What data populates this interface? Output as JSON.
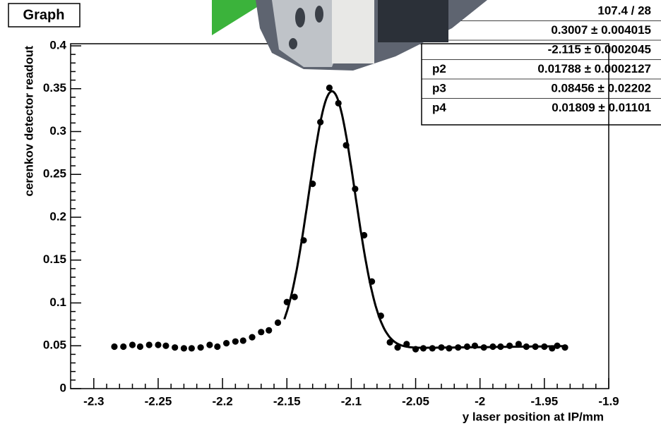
{
  "chart_data": {
    "type": "scatter",
    "title": "Graph",
    "x_label": "y laser position at IP/mm",
    "y_label": "cerenkov detector readout",
    "xlim": [
      -2.318,
      -1.9
    ],
    "ylim": [
      0,
      0.4
    ],
    "xticks": [
      -2.3,
      -2.25,
      -2.2,
      -2.15,
      -2.1,
      -2.05,
      -2,
      -1.95,
      -1.9
    ],
    "yticks": [
      0,
      0.05,
      0.1,
      0.15,
      0.2,
      0.25,
      0.3,
      0.35,
      0.4
    ],
    "color": "#000000",
    "x": [
      -2.284,
      -2.277,
      -2.27,
      -2.264,
      -2.257,
      -2.25,
      -2.244,
      -2.237,
      -2.23,
      -2.224,
      -2.217,
      -2.21,
      -2.204,
      -2.197,
      -2.19,
      -2.184,
      -2.177,
      -2.17,
      -2.164,
      -2.157,
      -2.15,
      -2.144,
      -2.137,
      -2.13,
      -2.124,
      -2.117,
      -2.11,
      -2.104,
      -2.097,
      -2.09,
      -2.084,
      -2.077,
      -2.07,
      -2.064,
      -2.057,
      -2.05,
      -2.044,
      -2.037,
      -2.03,
      -2.024,
      -2.017,
      -2.01,
      -2.004,
      -1.997,
      -1.99,
      -1.984,
      -1.977,
      -1.97,
      -1.964,
      -1.957,
      -1.95,
      -1.944,
      -1.94,
      -1.934
    ],
    "values": [
      0.049,
      0.049,
      0.051,
      0.049,
      0.051,
      0.051,
      0.05,
      0.048,
      0.047,
      0.047,
      0.048,
      0.051,
      0.049,
      0.053,
      0.055,
      0.056,
      0.06,
      0.066,
      0.068,
      0.077,
      0.101,
      0.107,
      0.173,
      0.239,
      0.311,
      0.351,
      0.333,
      0.284,
      0.233,
      0.179,
      0.125,
      0.085,
      0.054,
      0.048,
      0.052,
      0.046,
      0.047,
      0.047,
      0.048,
      0.047,
      0.048,
      0.049,
      0.05,
      0.048,
      0.049,
      0.049,
      0.05,
      0.052,
      0.049,
      0.049,
      0.049,
      0.047,
      0.05,
      0.048
    ],
    "fit": {
      "p0": 0.3007,
      "p1": -2.115,
      "p2": 0.01788,
      "p3": 0.08456,
      "p4": 0.01809,
      "range": [
        -2.152,
        -1.935
      ]
    },
    "stats": [
      {
        "value": "107.4 / 28"
      },
      {
        "value": "0.3007 ± 0.004015"
      },
      {
        "value": "-2.115 ± 0.0002045"
      },
      {
        "label": "p2",
        "value": "0.01788 ± 0.0002127"
      },
      {
        "label": "p3",
        "value": "0.08456 ± 0.02202"
      },
      {
        "label": "p4",
        "value": "0.01809 ± 0.01101"
      }
    ]
  }
}
